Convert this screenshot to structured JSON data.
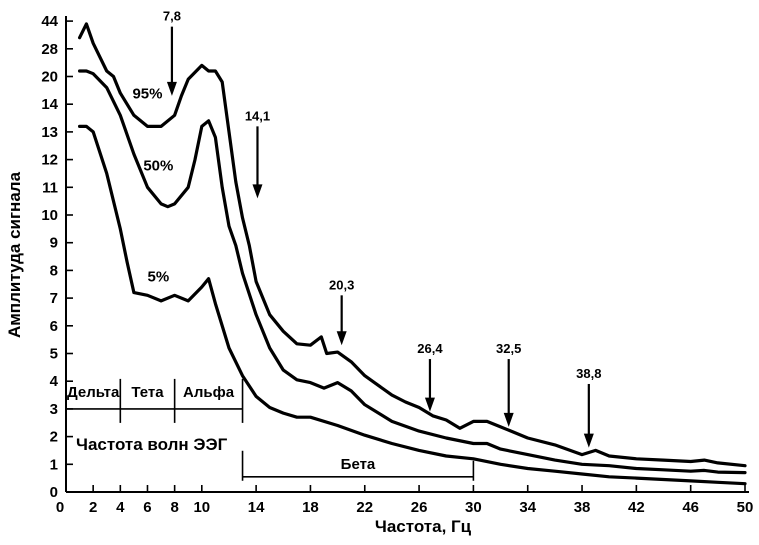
{
  "chart_data": {
    "type": "line",
    "xlabel": "Частота, Гц",
    "ylabel": "Амплитуда сигнала",
    "xlim": [
      0,
      50
    ],
    "x_ticks": [
      {
        "value": 0,
        "label": "0"
      },
      {
        "value": 2,
        "label": "2"
      },
      {
        "value": 4,
        "label": "4"
      },
      {
        "value": 6,
        "label": "6"
      },
      {
        "value": 8,
        "label": "8"
      },
      {
        "value": 10,
        "label": "10"
      },
      {
        "value": 14,
        "label": "14"
      },
      {
        "value": 18,
        "label": "18"
      },
      {
        "value": 22,
        "label": "22"
      },
      {
        "value": 26,
        "label": "26"
      },
      {
        "value": 30,
        "label": "30"
      },
      {
        "value": 34,
        "label": "34"
      },
      {
        "value": 38,
        "label": "38"
      },
      {
        "value": 42,
        "label": "42"
      },
      {
        "value": 46,
        "label": "46"
      },
      {
        "value": 50,
        "label": "50"
      }
    ],
    "y_tick_labels": [
      "0",
      "1",
      "2",
      "3",
      "4",
      "5",
      "6",
      "7",
      "8",
      "9",
      "10",
      "11",
      "12",
      "13",
      "14",
      "20",
      "28",
      "44"
    ],
    "series": [
      {
        "name": "95%",
        "points": [
          [
            1,
            16.4
          ],
          [
            1.5,
            16.9
          ],
          [
            2,
            16.2
          ],
          [
            3,
            15.2
          ],
          [
            3.5,
            15.0
          ],
          [
            4,
            14.4
          ],
          [
            5,
            13.6
          ],
          [
            6,
            13.2
          ],
          [
            7,
            13.2
          ],
          [
            8,
            13.6
          ],
          [
            8.5,
            14.3
          ],
          [
            9,
            14.9
          ],
          [
            10,
            15.4
          ],
          [
            10.5,
            15.2
          ],
          [
            11,
            15.2
          ],
          [
            11.5,
            14.8
          ],
          [
            12,
            13.0
          ],
          [
            12.5,
            11.2
          ],
          [
            13,
            9.9
          ],
          [
            13.5,
            8.9
          ],
          [
            14,
            7.6
          ],
          [
            14.5,
            7.0
          ],
          [
            15,
            6.4
          ],
          [
            16,
            5.8
          ],
          [
            17,
            5.35
          ],
          [
            18,
            5.3
          ],
          [
            18.8,
            5.6
          ],
          [
            19.2,
            5.0
          ],
          [
            20,
            5.05
          ],
          [
            21,
            4.7
          ],
          [
            22,
            4.2
          ],
          [
            24,
            3.5
          ],
          [
            25,
            3.25
          ],
          [
            26,
            3.05
          ],
          [
            27,
            2.75
          ],
          [
            28,
            2.6
          ],
          [
            29,
            2.3
          ],
          [
            30,
            2.55
          ],
          [
            31,
            2.55
          ],
          [
            32,
            2.35
          ],
          [
            33,
            2.15
          ],
          [
            34,
            1.95
          ],
          [
            36,
            1.7
          ],
          [
            38,
            1.35
          ],
          [
            39,
            1.5
          ],
          [
            40,
            1.3
          ],
          [
            42,
            1.2
          ],
          [
            44,
            1.15
          ],
          [
            46,
            1.1
          ],
          [
            47,
            1.15
          ],
          [
            48,
            1.05
          ],
          [
            50,
            0.95
          ]
        ]
      },
      {
        "name": "50%",
        "points": [
          [
            1,
            15.2
          ],
          [
            1.5,
            15.2
          ],
          [
            2,
            15.1
          ],
          [
            3,
            14.6
          ],
          [
            4,
            13.6
          ],
          [
            5,
            12.2
          ],
          [
            6,
            11.0
          ],
          [
            7,
            10.4
          ],
          [
            7.5,
            10.3
          ],
          [
            8,
            10.4
          ],
          [
            9,
            11.0
          ],
          [
            9.5,
            12.0
          ],
          [
            10,
            13.2
          ],
          [
            10.5,
            13.4
          ],
          [
            11,
            12.8
          ],
          [
            11.5,
            11.0
          ],
          [
            12,
            9.6
          ],
          [
            12.5,
            8.9
          ],
          [
            13,
            7.9
          ],
          [
            14,
            6.4
          ],
          [
            15,
            5.2
          ],
          [
            16,
            4.4
          ],
          [
            17,
            4.05
          ],
          [
            18,
            3.95
          ],
          [
            19,
            3.75
          ],
          [
            20,
            3.95
          ],
          [
            21,
            3.65
          ],
          [
            22,
            3.15
          ],
          [
            24,
            2.55
          ],
          [
            26,
            2.2
          ],
          [
            28,
            1.95
          ],
          [
            30,
            1.75
          ],
          [
            31,
            1.75
          ],
          [
            32,
            1.55
          ],
          [
            34,
            1.35
          ],
          [
            36,
            1.15
          ],
          [
            38,
            1.0
          ],
          [
            40,
            0.95
          ],
          [
            42,
            0.85
          ],
          [
            44,
            0.8
          ],
          [
            46,
            0.75
          ],
          [
            47,
            0.78
          ],
          [
            48,
            0.72
          ],
          [
            50,
            0.7
          ]
        ]
      },
      {
        "name": "5%",
        "points": [
          [
            1,
            13.2
          ],
          [
            1.5,
            13.2
          ],
          [
            2,
            13.0
          ],
          [
            3,
            11.5
          ],
          [
            4,
            9.5
          ],
          [
            4.5,
            8.3
          ],
          [
            5,
            7.2
          ],
          [
            6,
            7.1
          ],
          [
            7,
            6.9
          ],
          [
            8,
            7.1
          ],
          [
            9,
            6.9
          ],
          [
            10,
            7.4
          ],
          [
            10.5,
            7.7
          ],
          [
            11,
            6.8
          ],
          [
            12,
            5.2
          ],
          [
            13,
            4.2
          ],
          [
            14,
            3.45
          ],
          [
            15,
            3.05
          ],
          [
            16,
            2.85
          ],
          [
            17,
            2.7
          ],
          [
            18,
            2.7
          ],
          [
            20,
            2.4
          ],
          [
            22,
            2.05
          ],
          [
            24,
            1.75
          ],
          [
            26,
            1.5
          ],
          [
            28,
            1.3
          ],
          [
            30,
            1.2
          ],
          [
            32,
            1.0
          ],
          [
            34,
            0.85
          ],
          [
            36,
            0.75
          ],
          [
            38,
            0.65
          ],
          [
            40,
            0.55
          ],
          [
            42,
            0.5
          ],
          [
            44,
            0.45
          ],
          [
            46,
            0.4
          ],
          [
            48,
            0.35
          ],
          [
            50,
            0.3
          ]
        ]
      }
    ],
    "curve_labels": [
      {
        "series": "95%",
        "x": 6.0,
        "y": 14.2
      },
      {
        "series": "50%",
        "x": 6.8,
        "y": 11.6
      },
      {
        "series": "5%",
        "x": 6.8,
        "y": 7.6
      }
    ],
    "annotations": [
      {
        "label": "7,8",
        "x": 7.8,
        "y_top": 16.8,
        "y_tip": 14.3
      },
      {
        "label": "14,1",
        "x": 14.1,
        "y_top": 13.2,
        "y_tip": 10.6
      },
      {
        "label": "20,3",
        "x": 20.3,
        "y_top": 7.1,
        "y_tip": 5.3
      },
      {
        "label": "26,4",
        "x": 26.8,
        "y_top": 4.8,
        "y_tip": 2.9
      },
      {
        "label": "32,5",
        "x": 32.6,
        "y_top": 4.8,
        "y_tip": 2.35
      },
      {
        "label": "38,8",
        "x": 38.5,
        "y_top": 3.9,
        "y_tip": 1.6
      }
    ],
    "bands": [
      {
        "name": "Дельта",
        "x0": 0,
        "x1": 4,
        "y": 3
      },
      {
        "name": "Тета",
        "x0": 4,
        "x1": 8,
        "y": 3
      },
      {
        "name": "Альфа",
        "x0": 8,
        "x1": 13,
        "y": 3
      },
      {
        "name": "Бета",
        "x0": 13,
        "x1": 30,
        "y": 0.55
      }
    ],
    "band_caption": "Частота волн ЭЭГ",
    "grid": false,
    "legend": "none"
  }
}
